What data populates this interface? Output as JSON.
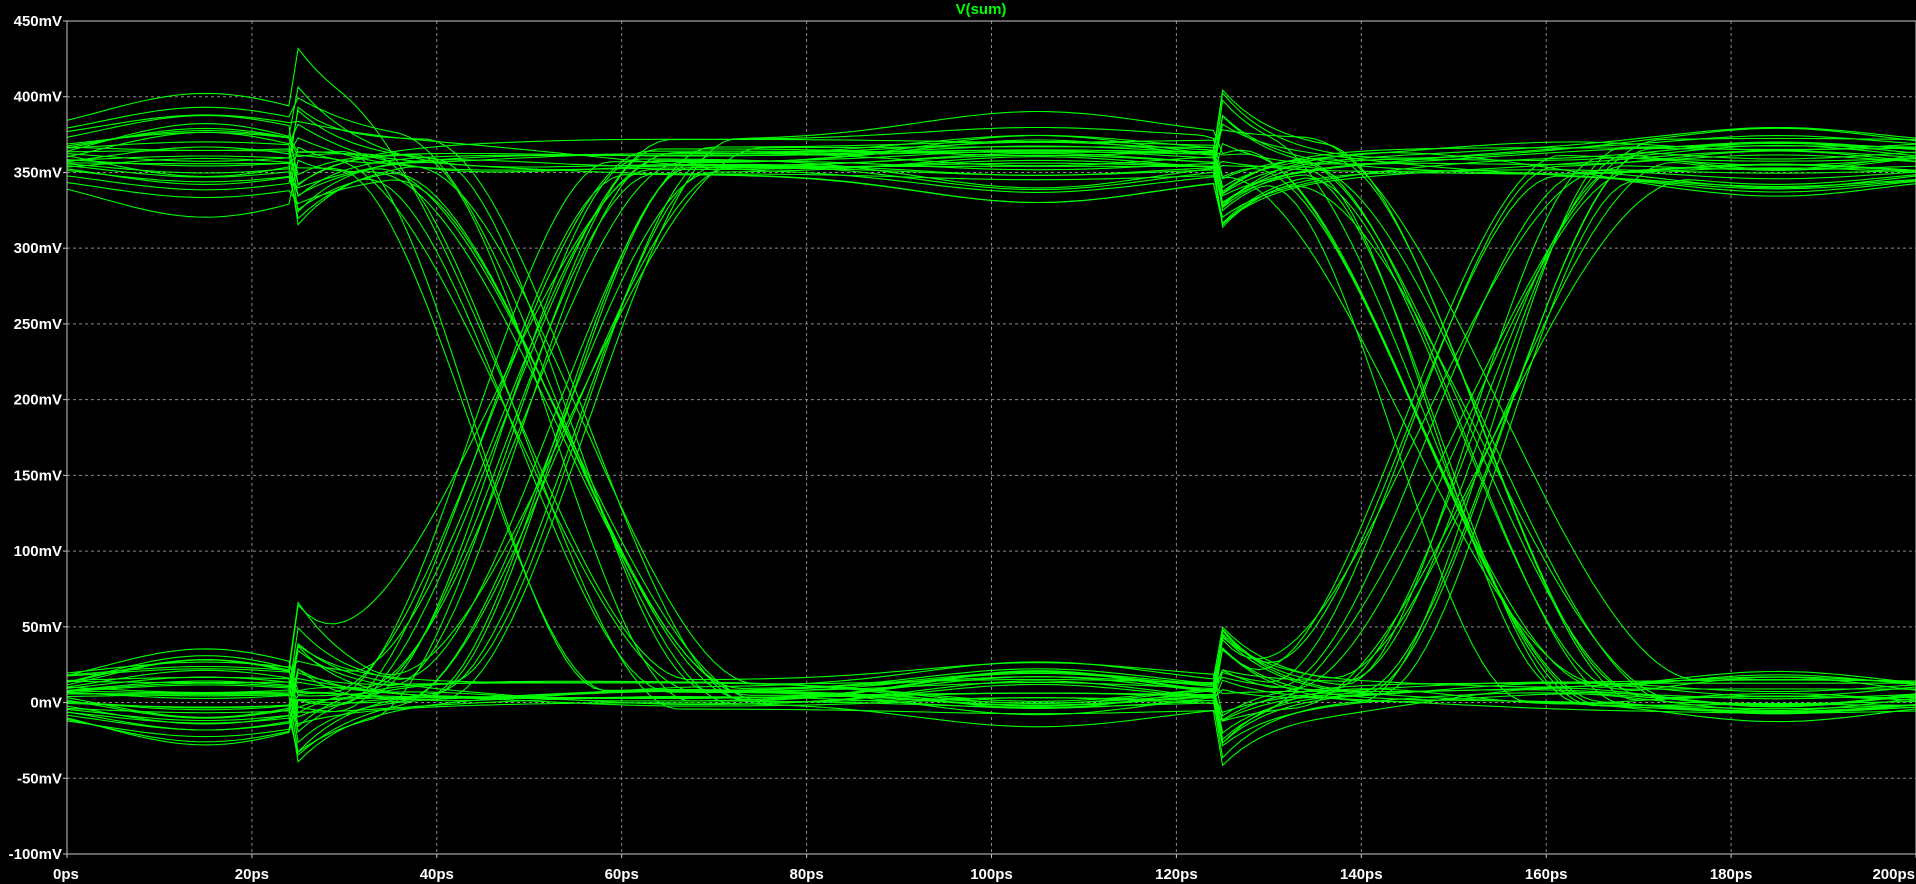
{
  "chart_data": {
    "type": "line",
    "title": "V(sum)",
    "xlabel": "",
    "ylabel": "",
    "xlim": [
      0,
      200
    ],
    "ylim": [
      -100,
      450
    ],
    "x_ticks": [
      0,
      20,
      40,
      60,
      80,
      100,
      120,
      140,
      160,
      180,
      200
    ],
    "x_tick_labels": [
      "0ps",
      "20ps",
      "40ps",
      "60ps",
      "80ps",
      "100ps",
      "120ps",
      "140ps",
      "160ps",
      "180ps",
      "200ps"
    ],
    "y_ticks": [
      -100,
      -50,
      0,
      50,
      100,
      150,
      200,
      250,
      300,
      350,
      400,
      450
    ],
    "y_tick_labels": [
      "-100mV",
      "-50mV",
      "0mV",
      "50mV",
      "100mV",
      "150mV",
      "200mV",
      "250mV",
      "300mV",
      "350mV",
      "400mV",
      "450mV"
    ],
    "x_unit": "ps",
    "y_unit": "mV",
    "grid": true,
    "trace_color": "#00ff00",
    "background": "#000000",
    "grid_color": "#8a8a8a",
    "eye": {
      "unit_interval_ps": 100,
      "crossing_times_ps": [
        50,
        150
      ],
      "boundary_times_ps": [
        25,
        125
      ],
      "high_level_mV": 360,
      "low_level_mV": 5,
      "crossing_level_mV": 185,
      "high_range_mV": [
        265,
        430
      ],
      "low_range_mV": [
        -75,
        90
      ],
      "trace_count": 60
    },
    "series": [
      {
        "values_sample": [
          {
            "x": 0,
            "y": 355
          },
          {
            "x": 25,
            "y": 330
          },
          {
            "x": 40,
            "y": 330
          },
          {
            "x": 50,
            "y": 200
          },
          {
            "x": 60,
            "y": 60
          },
          {
            "x": 90,
            "y": 5
          },
          {
            "x": 125,
            "y": 35
          },
          {
            "x": 140,
            "y": 30
          },
          {
            "x": 150,
            "y": 190
          },
          {
            "x": 165,
            "y": 340
          },
          {
            "x": 190,
            "y": 360
          },
          {
            "x": 200,
            "y": 365
          }
        ]
      }
    ]
  }
}
